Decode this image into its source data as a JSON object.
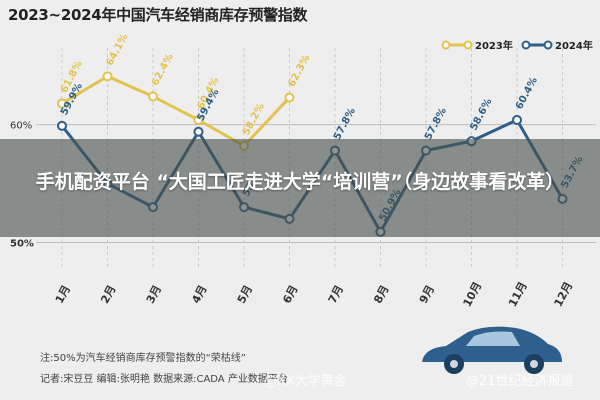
{
  "page": {
    "banner_text": "手机配资平台 “大国工匠走进大学“培训营”（身边故事看改革）",
    "note": "注:50%为汽车经销商库存预警指数的“荣枯线”",
    "credits": "记者:宋豆豆  编辑:张明艳  数据来源:CADA 产业数据平台",
    "watermark_left": "@XX大学黄金",
    "watermark_right": "@21世纪经济报道"
  },
  "chart_data": {
    "type": "line",
    "title": "2023~2024年中国汽车经销商库存预警指数",
    "categories": [
      "1月",
      "2月",
      "3月",
      "4月",
      "5月",
      "6月",
      "7月",
      "8月",
      "9月",
      "10月",
      "11月",
      "12月"
    ],
    "series": [
      {
        "name": "2023年",
        "color": "#e3c24f",
        "values": [
          61.8,
          64.1,
          62.4,
          60.4,
          58.2,
          62.3,
          null,
          null,
          null,
          null,
          null,
          null
        ]
      },
      {
        "name": "2024年",
        "color": "#2e5f88",
        "values": [
          59.9,
          55.0,
          53.0,
          59.4,
          53.0,
          52.0,
          57.8,
          50.9,
          57.8,
          58.6,
          60.4,
          53.7
        ]
      }
    ],
    "point_labels": {
      "2023年": [
        "61.8%",
        "64.1%",
        "62.4%",
        "60.4%",
        "58.2%",
        "62.3%"
      ],
      "2024年": [
        "59.9%",
        "",
        "",
        "59.4%",
        "53.",
        "",
        "57.8%",
        "50.9%",
        "57.8%",
        "58.6%",
        "60.4%",
        "53.7%"
      ]
    },
    "y_ticks": [
      "60%",
      "50%"
    ],
    "ylim": [
      48,
      66
    ],
    "grid": true,
    "legend_position": "top-right"
  }
}
